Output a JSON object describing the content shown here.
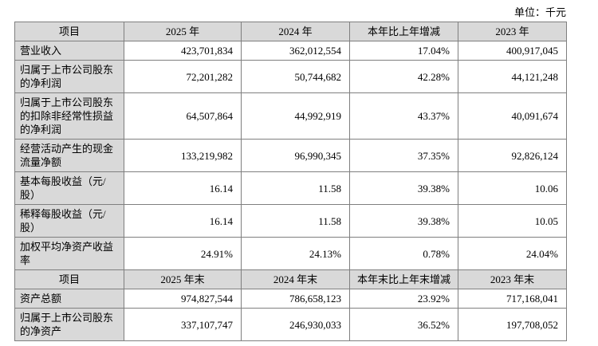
{
  "page": {
    "unit_label": "单位：千元"
  },
  "colors": {
    "header_fill": "#d9d9d9",
    "label_column_fill": "#d9d9d9",
    "border": "#7f7f7f",
    "text": "#000000"
  },
  "annual_table": {
    "headers": [
      "项目",
      "2025 年",
      "2024 年",
      "本年比上年增减",
      "2023 年"
    ],
    "rows": [
      {
        "label": "营业收入",
        "values": [
          "423,701,834",
          "362,012,554",
          "17.04%",
          "400,917,045"
        ]
      },
      {
        "label": "归属于上市公司股东的净利润",
        "values": [
          "72,201,282",
          "50,744,682",
          "42.28%",
          "44,121,248"
        ]
      },
      {
        "label": "归属于上市公司股东的扣除非经常性损益的净利润",
        "values": [
          "64,507,864",
          "44,992,919",
          "43.37%",
          "40,091,674"
        ]
      },
      {
        "label": "经营活动产生的现金流量净额",
        "values": [
          "133,219,982",
          "96,990,345",
          "37.35%",
          "92,826,124"
        ]
      },
      {
        "label": "基本每股收益（元/股）",
        "values": [
          "16.14",
          "11.58",
          "39.38%",
          "10.06"
        ]
      },
      {
        "label": "稀释每股收益（元/股）",
        "values": [
          "16.14",
          "11.58",
          "39.38%",
          "10.05"
        ]
      },
      {
        "label": "加权平均净资产收益率",
        "values": [
          "24.91%",
          "24.13%",
          "0.78%",
          "24.04%"
        ]
      }
    ]
  },
  "balance_table": {
    "headers": [
      "项目",
      "2025 年末",
      "2024 年末",
      "本年末比上年末增减",
      "2023 年末"
    ],
    "rows": [
      {
        "label": "资产总额",
        "values": [
          "974,827,544",
          "786,658,123",
          "23.92%",
          "717,168,041"
        ]
      },
      {
        "label": "归属于上市公司股东的净资产",
        "values": [
          "337,107,747",
          "246,930,033",
          "36.52%",
          "197,708,052"
        ]
      }
    ]
  }
}
